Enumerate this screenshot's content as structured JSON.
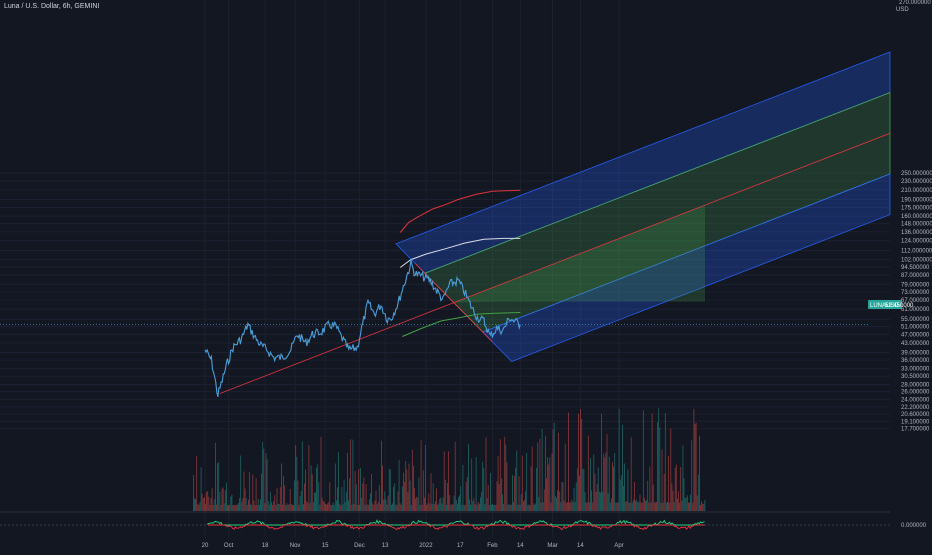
{
  "header": {
    "title": "Luna / U.S. Dollar, 6h, GEMINI",
    "unit": "USD",
    "top_value": "270.000000"
  },
  "price_badge": {
    "label": "LUNAUSD",
    "value": "52.450000",
    "color": "#26a69a"
  },
  "colors": {
    "background": "#131722",
    "price_line": "#4a9fd8",
    "channel_blue": "#2962ff",
    "channel_green": "#4caf50",
    "median_line": "#f23645",
    "volume_up": "#26a69a",
    "volume_down": "#ef5350",
    "ma_red": "#e0333d",
    "ma_white": "#d8dbe6",
    "ma_green": "#43a047"
  },
  "chart_data": {
    "type": "line",
    "yscale": "log",
    "y_ticks": [
      "250.000000",
      "230.000000",
      "210.000000",
      "190.000000",
      "175.000000",
      "160.000000",
      "148.000000",
      "136.000000",
      "124.000000",
      "112.000000",
      "102.000000",
      "94.500000",
      "87.000000",
      "79.000000",
      "73.000000",
      "67.000000",
      "61.000000",
      "55.000000",
      "51.000000",
      "47.000000",
      "43.000000",
      "39.000000",
      "36.000000",
      "33.000000",
      "30.500000",
      "28.000000",
      "26.000000",
      "24.000000",
      "22.200000",
      "20.600000",
      "19.100000",
      "17.700000"
    ],
    "x_ticks": [
      "20",
      "Oct",
      "18",
      "Nov",
      "15",
      "Dec",
      "13",
      "2022",
      "17",
      "Feb",
      "14",
      "Mar",
      "14",
      "Apr"
    ],
    "oscillator_tick": "0.000000",
    "series": [
      {
        "values": [
          [
            "2021-09-20",
            40
          ],
          [
            "2021-09-23",
            36
          ],
          [
            "2021-09-26",
            25
          ],
          [
            "2021-09-30",
            34
          ],
          [
            "2021-10-03",
            41
          ],
          [
            "2021-10-07",
            45
          ],
          [
            "2021-10-10",
            52
          ],
          [
            "2021-10-13",
            46
          ],
          [
            "2021-10-16",
            42
          ],
          [
            "2021-10-19",
            40
          ],
          [
            "2021-10-22",
            37
          ],
          [
            "2021-10-26",
            37
          ],
          [
            "2021-10-30",
            40
          ],
          [
            "2021-11-02",
            47
          ],
          [
            "2021-11-06",
            43
          ],
          [
            "2021-11-09",
            47
          ],
          [
            "2021-11-13",
            48
          ],
          [
            "2021-11-17",
            52
          ],
          [
            "2021-11-20",
            51
          ],
          [
            "2021-11-23",
            45
          ],
          [
            "2021-11-26",
            40
          ],
          [
            "2021-11-30",
            41
          ],
          [
            "2021-12-02",
            50
          ],
          [
            "2021-12-05",
            65
          ],
          [
            "2021-12-08",
            58
          ],
          [
            "2021-12-11",
            64
          ],
          [
            "2021-12-14",
            55
          ],
          [
            "2021-12-16",
            56
          ],
          [
            "2021-12-19",
            65
          ],
          [
            "2021-12-22",
            80
          ],
          [
            "2021-12-25",
            98
          ],
          [
            "2021-12-27",
            88
          ],
          [
            "2021-12-30",
            86
          ],
          [
            "2022-01-03",
            82
          ],
          [
            "2022-01-06",
            74
          ],
          [
            "2022-01-09",
            67
          ],
          [
            "2022-01-12",
            79
          ],
          [
            "2022-01-16",
            82
          ],
          [
            "2022-01-19",
            73
          ],
          [
            "2022-01-22",
            63
          ],
          [
            "2022-01-25",
            56
          ],
          [
            "2022-01-28",
            54
          ],
          [
            "2022-01-31",
            46
          ],
          [
            "2022-02-03",
            50
          ],
          [
            "2022-02-06",
            49
          ],
          [
            "2022-02-09",
            56
          ],
          [
            "2022-02-11",
            54
          ],
          [
            "2022-02-14",
            52
          ]
        ]
      }
    ],
    "moving_averages": [
      {
        "color_key": "ma_red",
        "values": [
          [
            "2021-12-20",
            135
          ],
          [
            "2021-12-24",
            150
          ],
          [
            "2021-12-29",
            160
          ],
          [
            "2022-01-04",
            172
          ],
          [
            "2022-01-10",
            180
          ],
          [
            "2022-01-16",
            190
          ],
          [
            "2022-01-24",
            200
          ],
          [
            "2022-02-01",
            207
          ],
          [
            "2022-02-14",
            209
          ]
        ]
      },
      {
        "color_key": "ma_white",
        "values": [
          [
            "2021-12-20",
            94
          ],
          [
            "2021-12-25",
            102
          ],
          [
            "2022-01-01",
            108
          ],
          [
            "2022-01-10",
            114
          ],
          [
            "2022-01-19",
            121
          ],
          [
            "2022-01-28",
            126
          ],
          [
            "2022-02-06",
            127
          ],
          [
            "2022-02-14",
            127
          ]
        ]
      },
      {
        "color_key": "ma_green",
        "values": [
          [
            "2021-12-21",
            46
          ],
          [
            "2021-12-30",
            50
          ],
          [
            "2022-01-08",
            54
          ],
          [
            "2022-01-17",
            56
          ],
          [
            "2022-01-25",
            58
          ],
          [
            "2022-02-02",
            58.5
          ],
          [
            "2022-02-14",
            59
          ]
        ]
      }
    ],
    "pitchfork": {
      "start": [
        "2021-09-27",
        25.5
      ],
      "pivot_high": [
        "2021-12-27",
        98
      ],
      "pivot_low": [
        "2022-02-01",
        43.5
      ]
    }
  }
}
